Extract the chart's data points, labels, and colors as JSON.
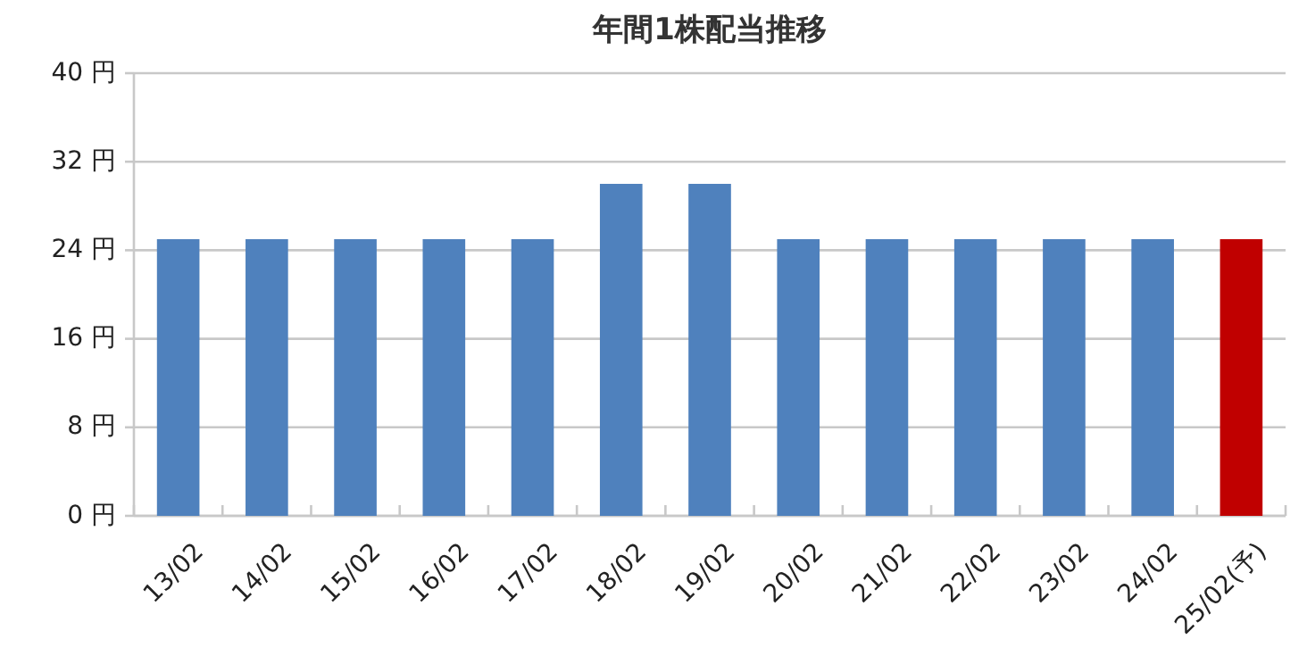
{
  "chart_data": {
    "type": "bar",
    "title": "年間1株配当推移",
    "categories": [
      "13/02",
      "14/02",
      "15/02",
      "16/02",
      "17/02",
      "18/02",
      "19/02",
      "20/02",
      "21/02",
      "22/02",
      "23/02",
      "24/02",
      "25/02(予)"
    ],
    "values": [
      25,
      25,
      25,
      25,
      25,
      30,
      30,
      25,
      25,
      25,
      25,
      25,
      25
    ],
    "colors": [
      "#4f81bd",
      "#4f81bd",
      "#4f81bd",
      "#4f81bd",
      "#4f81bd",
      "#4f81bd",
      "#4f81bd",
      "#4f81bd",
      "#4f81bd",
      "#4f81bd",
      "#4f81bd",
      "#4f81bd",
      "#c00000"
    ],
    "ylim": [
      0,
      40
    ],
    "yticks": [
      {
        "value": 0,
        "label": "0 円"
      },
      {
        "value": 8,
        "label": "8 円"
      },
      {
        "value": 16,
        "label": "16 円"
      },
      {
        "value": 24,
        "label": "24 円"
      },
      {
        "value": 32,
        "label": "32 円"
      },
      {
        "value": 40,
        "label": "40 円"
      }
    ],
    "grid": "y"
  }
}
